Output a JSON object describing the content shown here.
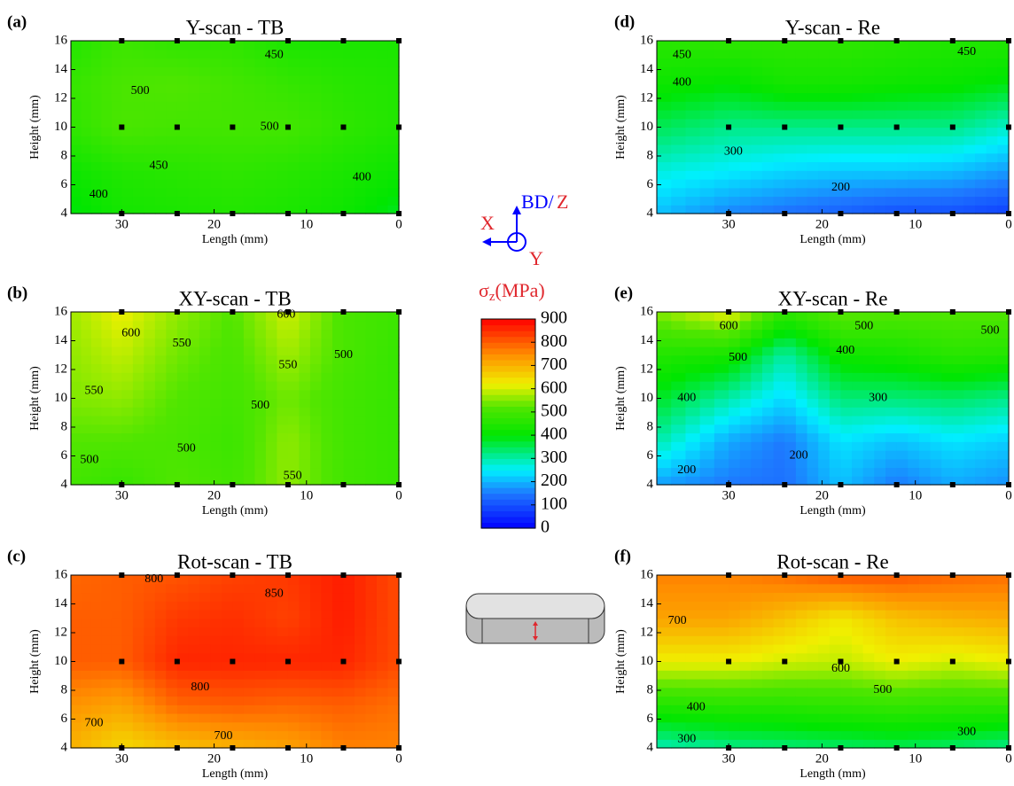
{
  "chart_data": [
    {
      "type": "contour",
      "panel_label": "(a)",
      "title": "Y-scan - TB",
      "xlabel": "Length (mm)",
      "ylabel": "Height (mm)",
      "xlim": [
        35.5,
        0
      ],
      "ylim": [
        4,
        16
      ],
      "xticks": [
        30,
        20,
        10,
        0
      ],
      "yticks": [
        4,
        6,
        8,
        10,
        12,
        14,
        16
      ],
      "grid_x": [
        35.5,
        30,
        24,
        18,
        12,
        6,
        0
      ],
      "grid_y": [
        4,
        7,
        10,
        13,
        16
      ],
      "z": [
        [
          390,
          430,
          440,
          450,
          440,
          420,
          380
        ],
        [
          420,
          450,
          460,
          470,
          460,
          440,
          420
        ],
        [
          470,
          510,
          500,
          500,
          500,
          470,
          450
        ],
        [
          480,
          510,
          520,
          500,
          480,
          460,
          450
        ],
        [
          450,
          490,
          470,
          470,
          440,
          440,
          440
        ]
      ],
      "points_x": [
        30,
        24,
        18,
        12,
        6,
        0
      ],
      "points_y": [
        4,
        10,
        16
      ],
      "contour_labels": [
        {
          "x": 13.5,
          "y": 15,
          "value": 450
        },
        {
          "x": 28,
          "y": 12.5,
          "value": 500
        },
        {
          "x": 14,
          "y": 10,
          "value": 500
        },
        {
          "x": 26,
          "y": 7.3,
          "value": 450
        },
        {
          "x": 32.5,
          "y": 5.3,
          "value": 400
        },
        {
          "x": 4,
          "y": 6.5,
          "value": 400
        }
      ]
    },
    {
      "type": "contour",
      "panel_label": "(b)",
      "title": "XY-scan - TB",
      "xlabel": "Length (mm)",
      "ylabel": "Height (mm)",
      "xlim": [
        35.5,
        0
      ],
      "ylim": [
        4,
        16
      ],
      "xticks": [
        30,
        20,
        10,
        0
      ],
      "yticks": [
        4,
        6,
        8,
        10,
        12,
        14,
        16
      ],
      "grid_x": [
        35.5,
        30,
        24,
        18,
        12,
        6,
        0
      ],
      "grid_y": [
        4,
        7,
        10,
        13,
        16
      ],
      "z": [
        [
          500,
          480,
          520,
          500,
          560,
          500,
          480
        ],
        [
          520,
          520,
          510,
          490,
          560,
          500,
          480
        ],
        [
          550,
          560,
          520,
          500,
          540,
          500,
          480
        ],
        [
          560,
          590,
          540,
          510,
          570,
          510,
          480
        ],
        [
          570,
          620,
          560,
          520,
          600,
          510,
          490
        ]
      ],
      "points_x": [
        30,
        24,
        18,
        12,
        6,
        0
      ],
      "points_y": [
        4,
        16
      ],
      "contour_labels": [
        {
          "x": 29,
          "y": 14.5,
          "value": 600
        },
        {
          "x": 23.5,
          "y": 13.8,
          "value": 550
        },
        {
          "x": 12,
          "y": 12.3,
          "value": 550
        },
        {
          "x": 12.2,
          "y": 15.8,
          "value": 600
        },
        {
          "x": 6,
          "y": 13,
          "value": 500
        },
        {
          "x": 33,
          "y": 10.5,
          "value": 550
        },
        {
          "x": 15,
          "y": 9.5,
          "value": 500
        },
        {
          "x": 23,
          "y": 6.5,
          "value": 500
        },
        {
          "x": 33.5,
          "y": 5.7,
          "value": 500
        },
        {
          "x": 11.5,
          "y": 4.6,
          "value": 550
        }
      ]
    },
    {
      "type": "contour",
      "panel_label": "(c)",
      "title": "Rot-scan - TB",
      "xlabel": "Length (mm)",
      "ylabel": "Height (mm)",
      "xlim": [
        35.5,
        0
      ],
      "ylim": [
        4,
        16
      ],
      "xticks": [
        30,
        20,
        10,
        0
      ],
      "yticks": [
        4,
        6,
        8,
        10,
        12,
        14,
        16
      ],
      "grid_x": [
        35.5,
        30,
        24,
        18,
        12,
        6,
        0
      ],
      "grid_y": [
        4,
        7,
        10,
        13,
        16
      ],
      "z": [
        [
          700,
          650,
          680,
          700,
          720,
          760,
          760
        ],
        [
          740,
          720,
          790,
          800,
          790,
          800,
          780
        ],
        [
          800,
          800,
          860,
          860,
          860,
          860,
          820
        ],
        [
          800,
          800,
          840,
          850,
          830,
          870,
          820
        ],
        [
          790,
          800,
          810,
          830,
          840,
          870,
          820
        ]
      ],
      "points_x": [
        30,
        24,
        18,
        12,
        6,
        0
      ],
      "points_y": [
        4,
        10,
        16
      ],
      "contour_labels": [
        {
          "x": 26.5,
          "y": 15.7,
          "value": 800
        },
        {
          "x": 13.5,
          "y": 14.7,
          "value": 850
        },
        {
          "x": 21.5,
          "y": 8.2,
          "value": 800
        },
        {
          "x": 19,
          "y": 4.8,
          "value": 700
        },
        {
          "x": 33,
          "y": 5.7,
          "value": 700
        }
      ]
    },
    {
      "type": "contour",
      "panel_label": "(d)",
      "title": "Y-scan - Re",
      "xlabel": "Length (mm)",
      "ylabel": "Height (mm)",
      "xlim": [
        37.7,
        0
      ],
      "ylim": [
        4,
        16
      ],
      "xticks": [
        30,
        20,
        10,
        0
      ],
      "yticks": [
        4,
        6,
        8,
        10,
        12,
        14,
        16
      ],
      "grid_x": [
        37.7,
        30,
        24,
        18,
        12,
        6,
        0
      ],
      "grid_y": [
        4,
        7,
        10,
        13,
        16
      ],
      "z": [
        [
          210,
          160,
          140,
          120,
          100,
          100,
          80
        ],
        [
          270,
          250,
          230,
          220,
          220,
          210,
          180
        ],
        [
          350,
          320,
          320,
          320,
          320,
          320,
          280
        ],
        [
          420,
          400,
          430,
          430,
          420,
          410,
          390
        ],
        [
          460,
          470,
          470,
          470,
          460,
          450,
          450
        ]
      ],
      "points_x": [
        30,
        24,
        18,
        12,
        6,
        0
      ],
      "points_y": [
        4,
        10,
        16
      ],
      "contour_labels": [
        {
          "x": 35,
          "y": 15,
          "value": 450
        },
        {
          "x": 4.5,
          "y": 15.2,
          "value": 450
        },
        {
          "x": 35,
          "y": 13.1,
          "value": 400
        },
        {
          "x": 29.5,
          "y": 8.3,
          "value": 300
        },
        {
          "x": 18,
          "y": 5.8,
          "value": 200
        }
      ]
    },
    {
      "type": "contour",
      "panel_label": "(e)",
      "title": "XY-scan - Re",
      "xlabel": "Length (mm)",
      "ylabel": "Height (mm)",
      "xlim": [
        37.7,
        0
      ],
      "ylim": [
        4,
        16
      ],
      "xticks": [
        30,
        20,
        10,
        0
      ],
      "yticks": [
        4,
        6,
        8,
        10,
        12,
        14,
        16
      ],
      "grid_x": [
        37.7,
        30,
        24,
        18,
        12,
        6,
        0
      ],
      "grid_y": [
        4,
        7,
        10,
        13,
        16
      ],
      "z": [
        [
          180,
          150,
          140,
          210,
          150,
          190,
          170
        ],
        [
          300,
          190,
          150,
          240,
          210,
          240,
          220
        ],
        [
          380,
          300,
          230,
          330,
          330,
          340,
          320
        ],
        [
          450,
          430,
          300,
          420,
          430,
          460,
          450
        ],
        [
          550,
          620,
          470,
          530,
          520,
          520,
          520
        ]
      ],
      "points_x": [
        30,
        24,
        18,
        12,
        6,
        0
      ],
      "points_y": [
        4,
        16
      ],
      "contour_labels": [
        {
          "x": 30,
          "y": 15,
          "value": 600
        },
        {
          "x": 29,
          "y": 12.8,
          "value": 500
        },
        {
          "x": 15.5,
          "y": 15,
          "value": 500
        },
        {
          "x": 2,
          "y": 14.7,
          "value": 500
        },
        {
          "x": 17.5,
          "y": 13.3,
          "value": 400
        },
        {
          "x": 34.5,
          "y": 10,
          "value": 400
        },
        {
          "x": 14,
          "y": 10,
          "value": 300
        },
        {
          "x": 22.5,
          "y": 6,
          "value": 200
        },
        {
          "x": 34.5,
          "y": 5,
          "value": 200
        }
      ]
    },
    {
      "type": "contour",
      "panel_label": "(f)",
      "title": "Rot-scan - Re",
      "xlabel": "Length (mm)",
      "ylabel": "Height (mm)",
      "xlim": [
        37.7,
        0
      ],
      "ylim": [
        4,
        16
      ],
      "xticks": [
        30,
        20,
        10,
        0
      ],
      "yticks": [
        4,
        6,
        8,
        10,
        12,
        14,
        16
      ],
      "grid_x": [
        37.7,
        30,
        24,
        18,
        12,
        6,
        0
      ],
      "grid_y": [
        4,
        7,
        10,
        13,
        16
      ],
      "z": [
        [
          290,
          320,
          330,
          340,
          350,
          340,
          320
        ],
        [
          450,
          460,
          460,
          470,
          480,
          470,
          470
        ],
        [
          620,
          620,
          600,
          590,
          620,
          600,
          620
        ],
        [
          720,
          720,
          680,
          630,
          680,
          700,
          710
        ],
        [
          760,
          760,
          780,
          810,
          810,
          790,
          780
        ]
      ],
      "points_x": [
        30,
        24,
        18,
        12,
        6,
        0
      ],
      "points_y": [
        4,
        10,
        16
      ],
      "contour_labels": [
        {
          "x": 35.5,
          "y": 12.8,
          "value": 700
        },
        {
          "x": 18,
          "y": 9.5,
          "value": 600
        },
        {
          "x": 13.5,
          "y": 8,
          "value": 500
        },
        {
          "x": 33.5,
          "y": 6.8,
          "value": 400
        },
        {
          "x": 34.5,
          "y": 4.6,
          "value": 300
        },
        {
          "x": 4.5,
          "y": 5.1,
          "value": 300
        }
      ]
    }
  ],
  "colorbar": {
    "symbol": "σ",
    "subscript": "z",
    "unit": "(MPa)",
    "lim": [
      0,
      900
    ],
    "ticks": [
      0,
      100,
      200,
      300,
      400,
      500,
      600,
      700,
      800,
      900
    ],
    "stops": [
      {
        "value": 0,
        "color": "#0000ff"
      },
      {
        "value": 150,
        "color": "#1e78ff"
      },
      {
        "value": 250,
        "color": "#00f0ff"
      },
      {
        "value": 400,
        "color": "#00e600"
      },
      {
        "value": 520,
        "color": "#50e600"
      },
      {
        "value": 620,
        "color": "#f0f000"
      },
      {
        "value": 750,
        "color": "#ff8c00"
      },
      {
        "value": 900,
        "color": "#ff0000"
      }
    ]
  },
  "axes_indicator": {
    "build": "BD/",
    "z": "Z",
    "x": "X",
    "y": "Y"
  }
}
